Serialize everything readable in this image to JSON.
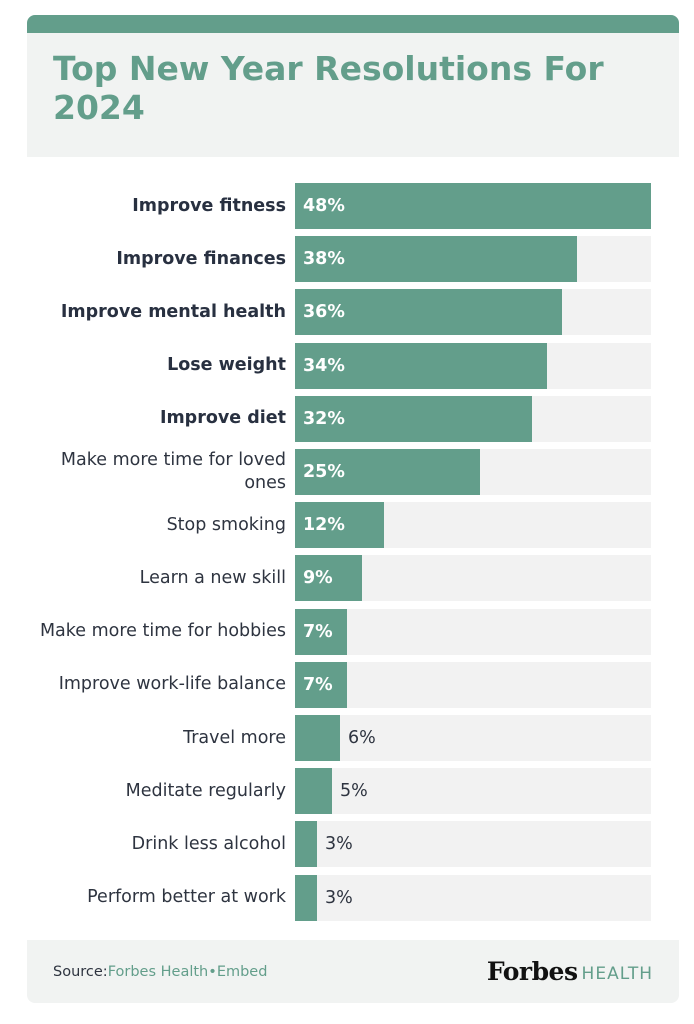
{
  "title": "Top New Year Resolutions For 2024",
  "footer": {
    "source_label": "Source: ",
    "source_link": "Forbes Health",
    "separator": " • ",
    "embed_link": "Embed",
    "brand_name": "Forbes",
    "brand_sub": "HEALTH"
  },
  "colors": {
    "accent": "#639e8b",
    "track": "#f2f2f2",
    "title_bg": "#f1f3f2",
    "text": "#2e3440"
  },
  "chart_data": {
    "type": "bar",
    "orientation": "horizontal",
    "title": "Top New Year Resolutions For 2024",
    "xlabel": "",
    "ylabel": "",
    "xlim": [
      0,
      48
    ],
    "grid": false,
    "categories": [
      "Improve fitness",
      "Improve finances",
      "Improve mental health",
      "Lose weight",
      "Improve diet",
      "Make more time for loved ones",
      "Stop smoking",
      "Learn a new skill",
      "Make more time for hobbies",
      "Improve work-life balance",
      "Travel more",
      "Meditate regularly",
      "Drink less alcohol",
      "Perform better at work"
    ],
    "values": [
      48,
      38,
      36,
      34,
      32,
      25,
      12,
      9,
      7,
      7,
      6,
      5,
      3,
      3
    ],
    "value_labels": [
      "48%",
      "38%",
      "36%",
      "34%",
      "32%",
      "25%",
      "12%",
      "9%",
      "7%",
      "7%",
      "6%",
      "5%",
      "3%",
      "3%"
    ],
    "bold_categories": [
      "Improve fitness",
      "Improve finances",
      "Improve mental health",
      "Lose weight",
      "Improve diet"
    ]
  }
}
